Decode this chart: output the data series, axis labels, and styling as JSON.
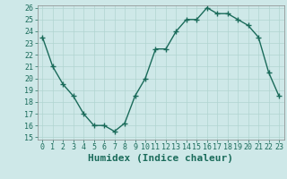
{
  "x": [
    0,
    1,
    2,
    3,
    4,
    5,
    6,
    7,
    8,
    9,
    10,
    11,
    12,
    13,
    14,
    15,
    16,
    17,
    18,
    19,
    20,
    21,
    22,
    23
  ],
  "y": [
    23.5,
    21.0,
    19.5,
    18.5,
    17.0,
    16.0,
    16.0,
    15.5,
    16.2,
    18.5,
    20.0,
    22.5,
    22.5,
    24.0,
    25.0,
    25.0,
    26.0,
    25.5,
    25.5,
    25.0,
    24.5,
    23.5,
    20.5,
    18.5
  ],
  "xlabel": "Humidex (Indice chaleur)",
  "ylim": [
    15,
    26
  ],
  "xlim": [
    -0.5,
    23.5
  ],
  "yticks": [
    15,
    16,
    17,
    18,
    19,
    20,
    21,
    22,
    23,
    24,
    25,
    26
  ],
  "xticks": [
    0,
    1,
    2,
    3,
    4,
    5,
    6,
    7,
    8,
    9,
    10,
    11,
    12,
    13,
    14,
    15,
    16,
    17,
    18,
    19,
    20,
    21,
    22,
    23
  ],
  "line_color": "#1a6b5a",
  "marker_color": "#1a6b5a",
  "bg_color": "#cee8e8",
  "grid_color": "#b0d4d0",
  "tick_fontsize": 6,
  "label_fontsize": 8
}
